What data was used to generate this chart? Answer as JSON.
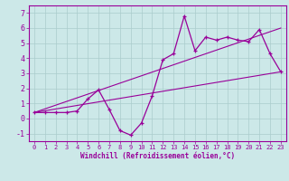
{
  "x": [
    0,
    1,
    2,
    3,
    4,
    5,
    6,
    7,
    8,
    9,
    10,
    11,
    12,
    13,
    14,
    15,
    16,
    17,
    18,
    19,
    20,
    21,
    22,
    23
  ],
  "y": [
    0.4,
    0.4,
    0.4,
    0.4,
    0.5,
    1.3,
    1.9,
    0.6,
    -0.8,
    -1.1,
    -0.3,
    1.5,
    3.9,
    4.3,
    6.8,
    4.5,
    5.4,
    5.2,
    5.4,
    5.2,
    5.1,
    5.9,
    4.3,
    3.1
  ],
  "line1_x": [
    0,
    23
  ],
  "line1_y": [
    0.4,
    6.0
  ],
  "line2_x": [
    0,
    23
  ],
  "line2_y": [
    0.4,
    3.1
  ],
  "line_color": "#990099",
  "bg_color": "#cce8e8",
  "grid_color": "#aacccc",
  "xlabel": "Windchill (Refroidissement éolien,°C)",
  "xlim": [
    -0.5,
    23.5
  ],
  "ylim": [
    -1.5,
    7.5
  ],
  "yticks": [
    -1,
    0,
    1,
    2,
    3,
    4,
    5,
    6,
    7
  ],
  "xticks": [
    0,
    1,
    2,
    3,
    4,
    5,
    6,
    7,
    8,
    9,
    10,
    11,
    12,
    13,
    14,
    15,
    16,
    17,
    18,
    19,
    20,
    21,
    22,
    23
  ]
}
